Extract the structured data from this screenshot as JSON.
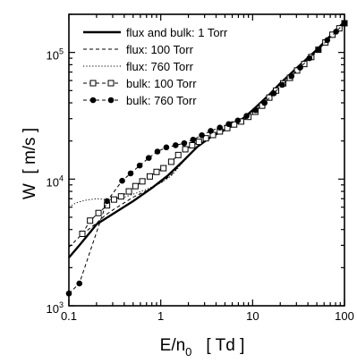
{
  "chart_data": {
    "type": "line",
    "x_scale": "log",
    "y_scale": "log",
    "xlim": [
      0.1,
      100
    ],
    "ylim": [
      1000,
      200000
    ],
    "grid": false,
    "legend_position": "top-left",
    "xlabel": {
      "main": "E/n",
      "sub": "0",
      "unit": "[ Td ]"
    },
    "ylabel": "W  [ m/s ]",
    "x_ticks": [
      {
        "value": 0.1,
        "label": "0.1"
      },
      {
        "value": 1,
        "label": "1"
      },
      {
        "value": 10,
        "label": "10"
      },
      {
        "value": 100,
        "label": "100"
      }
    ],
    "y_ticks": [
      {
        "value": 1000,
        "base": "10",
        "exp": "3"
      },
      {
        "value": 10000,
        "base": "10",
        "exp": "4"
      },
      {
        "value": 100000,
        "base": "10",
        "exp": "5"
      }
    ],
    "series": [
      {
        "name": "flux and bulk: 1 Torr",
        "style": "solid-thick",
        "color": "#000000",
        "points": [
          [
            0.1,
            2400
          ],
          [
            0.13,
            3000
          ],
          [
            0.17,
            3800
          ],
          [
            0.2,
            4400
          ],
          [
            0.3,
            5300
          ],
          [
            0.5,
            6700
          ],
          [
            0.8,
            8500
          ],
          [
            1.2,
            10700
          ],
          [
            1.7,
            13600
          ],
          [
            2.5,
            18000
          ],
          [
            3.5,
            21500
          ],
          [
            5,
            24500
          ],
          [
            7,
            28000
          ],
          [
            10,
            35000
          ],
          [
            15,
            46000
          ],
          [
            20,
            57000
          ],
          [
            30,
            75000
          ],
          [
            50,
            105000
          ],
          [
            70,
            135000
          ],
          [
            100,
            175000
          ]
        ]
      },
      {
        "name": "flux: 100 Torr",
        "style": "dashed",
        "color": "#000000",
        "points": [
          [
            0.1,
            2900
          ],
          [
            0.13,
            3500
          ],
          [
            0.17,
            4100
          ],
          [
            0.2,
            4500
          ],
          [
            0.25,
            5200
          ],
          [
            0.3,
            5700
          ],
          [
            0.4,
            6500
          ],
          [
            0.5,
            7200
          ],
          [
            0.7,
            8100
          ],
          [
            1,
            9400
          ],
          [
            1.3,
            10800
          ],
          [
            1.7,
            13500
          ],
          [
            2.5,
            18000
          ],
          [
            3.5,
            21500
          ],
          [
            5,
            24500
          ],
          [
            7,
            28000
          ],
          [
            10,
            35000
          ]
        ]
      },
      {
        "name": "flux: 760 Torr",
        "style": "dotted",
        "color": "#000000",
        "points": [
          [
            0.1,
            6000
          ],
          [
            0.12,
            6500
          ],
          [
            0.15,
            6800
          ],
          [
            0.2,
            7000
          ],
          [
            0.25,
            6900
          ],
          [
            0.3,
            6900
          ],
          [
            0.4,
            7200
          ],
          [
            0.5,
            7600
          ],
          [
            0.7,
            8300
          ],
          [
            1,
            9300
          ],
          [
            1.3,
            10600
          ],
          [
            1.7,
            13300
          ],
          [
            2.5,
            18000
          ],
          [
            3.5,
            21500
          ],
          [
            5,
            24500
          ],
          [
            7,
            28000
          ],
          [
            10,
            35000
          ]
        ]
      },
      {
        "name": "bulk: 100 Torr",
        "style": "dashed",
        "marker": "open-square",
        "color": "#000000",
        "points": [
          [
            0.14,
            3700
          ],
          [
            0.17,
            4700
          ],
          [
            0.21,
            5400
          ],
          [
            0.26,
            6200
          ],
          [
            0.31,
            6900
          ],
          [
            0.37,
            7300
          ],
          [
            0.45,
            8000
          ],
          [
            0.53,
            8800
          ],
          [
            0.63,
            9600
          ],
          [
            0.76,
            10500
          ],
          [
            0.9,
            11400
          ],
          [
            1.07,
            12200
          ],
          [
            1.3,
            13700
          ],
          [
            1.55,
            15500
          ],
          [
            1.85,
            17200
          ],
          [
            2.2,
            18500
          ],
          [
            2.6,
            19700
          ],
          [
            3.1,
            21000
          ],
          [
            3.7,
            22300
          ],
          [
            4.4,
            23800
          ],
          [
            5.3,
            25300
          ],
          [
            6.3,
            27000
          ],
          [
            7.5,
            28500
          ],
          [
            9,
            31000
          ],
          [
            10.7,
            34000
          ],
          [
            12.7,
            38000
          ],
          [
            15.2,
            44000
          ],
          [
            18,
            50000
          ],
          [
            21.5,
            57000
          ],
          [
            25.5,
            63000
          ],
          [
            30.5,
            72000
          ],
          [
            36.5,
            81000
          ],
          [
            43.5,
            92000
          ],
          [
            52,
            105000
          ],
          [
            62,
            120000
          ],
          [
            74,
            138000
          ],
          [
            88,
            155000
          ],
          [
            100,
            170000
          ]
        ]
      },
      {
        "name": "bulk: 760 Torr",
        "style": "dashed",
        "marker": "filled-circle",
        "color": "#000000",
        "points": [
          [
            0.1,
            1250
          ],
          [
            0.13,
            1500
          ],
          [
            0.26,
            6700
          ],
          [
            0.38,
            9700
          ],
          [
            0.47,
            11100
          ],
          [
            0.59,
            12800
          ],
          [
            0.74,
            14700
          ],
          [
            0.92,
            16500
          ],
          [
            1.15,
            17800
          ],
          [
            1.45,
            18500
          ],
          [
            1.8,
            19200
          ],
          [
            2.25,
            20500
          ],
          [
            2.8,
            22200
          ],
          [
            3.5,
            24000
          ],
          [
            4.4,
            25500
          ],
          [
            5.5,
            27200
          ],
          [
            6.9,
            29000
          ],
          [
            8.6,
            31500
          ],
          [
            10.8,
            35000
          ],
          [
            13.5,
            40000
          ],
          [
            17,
            47500
          ],
          [
            21,
            55500
          ],
          [
            26.5,
            65000
          ],
          [
            33,
            76000
          ],
          [
            41.5,
            90000
          ],
          [
            52,
            105000
          ],
          [
            65,
            125000
          ],
          [
            81,
            146000
          ],
          [
            100,
            170000
          ]
        ]
      }
    ]
  }
}
